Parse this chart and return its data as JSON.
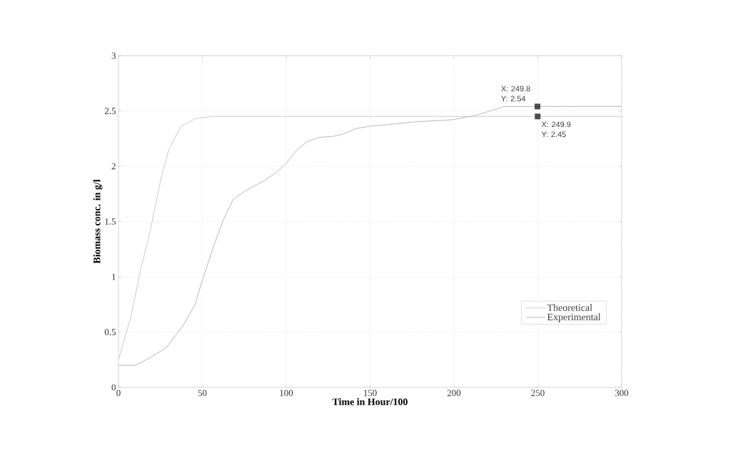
{
  "chart_data": {
    "type": "line",
    "xlabel": "Time in Hour/100",
    "ylabel": "Biomass conc. in g/l",
    "xlim": [
      0,
      300
    ],
    "ylim": [
      0,
      3
    ],
    "xticks": [
      0,
      50,
      100,
      150,
      200,
      250,
      300
    ],
    "yticks": [
      0,
      0.5,
      1,
      1.5,
      2,
      2.5,
      3
    ],
    "grid": true,
    "legend": "bottom right",
    "marker": "none",
    "line_style": "solid",
    "series": [
      {
        "name": "Theoretical",
        "color": "#c4c4c4",
        "x": [
          0,
          7.4,
          13,
          18.7,
          25.1,
          30,
          37.1,
          45.7,
          55.6,
          100,
          150,
          200,
          249.9,
          300
        ],
        "values": [
          0.25,
          0.64,
          1.05,
          1.4,
          1.87,
          2.15,
          2.36,
          2.43,
          2.45,
          2.45,
          2.45,
          2.45,
          2.45,
          2.45
        ]
      },
      {
        "name": "Experimental",
        "color": "#b0b0b0",
        "x": [
          0,
          10.2,
          20.1,
          28.6,
          38.6,
          45.7,
          50,
          57,
          62.7,
          68.4,
          75.9,
          86.8,
          93.8,
          99.6,
          106.6,
          112.3,
          119.4,
          127.9,
          133.6,
          141.4,
          149.2,
          176.2,
          198.8,
          213,
          230,
          249.8,
          300
        ],
        "values": [
          0.2,
          0.2,
          0.28,
          0.36,
          0.56,
          0.75,
          0.97,
          1.29,
          1.52,
          1.7,
          1.78,
          1.87,
          1.94,
          2.02,
          2.15,
          2.22,
          2.26,
          2.27,
          2.29,
          2.34,
          2.36,
          2.4,
          2.42,
          2.46,
          2.54,
          2.54,
          2.54
        ]
      }
    ],
    "annotations": [
      {
        "text": "X: 249.8 Y: 2.54",
        "x": 249.8,
        "y": 2.54
      },
      {
        "text": "X: 249.9 Y: 2.45",
        "x": 249.9,
        "y": 2.45
      }
    ]
  }
}
